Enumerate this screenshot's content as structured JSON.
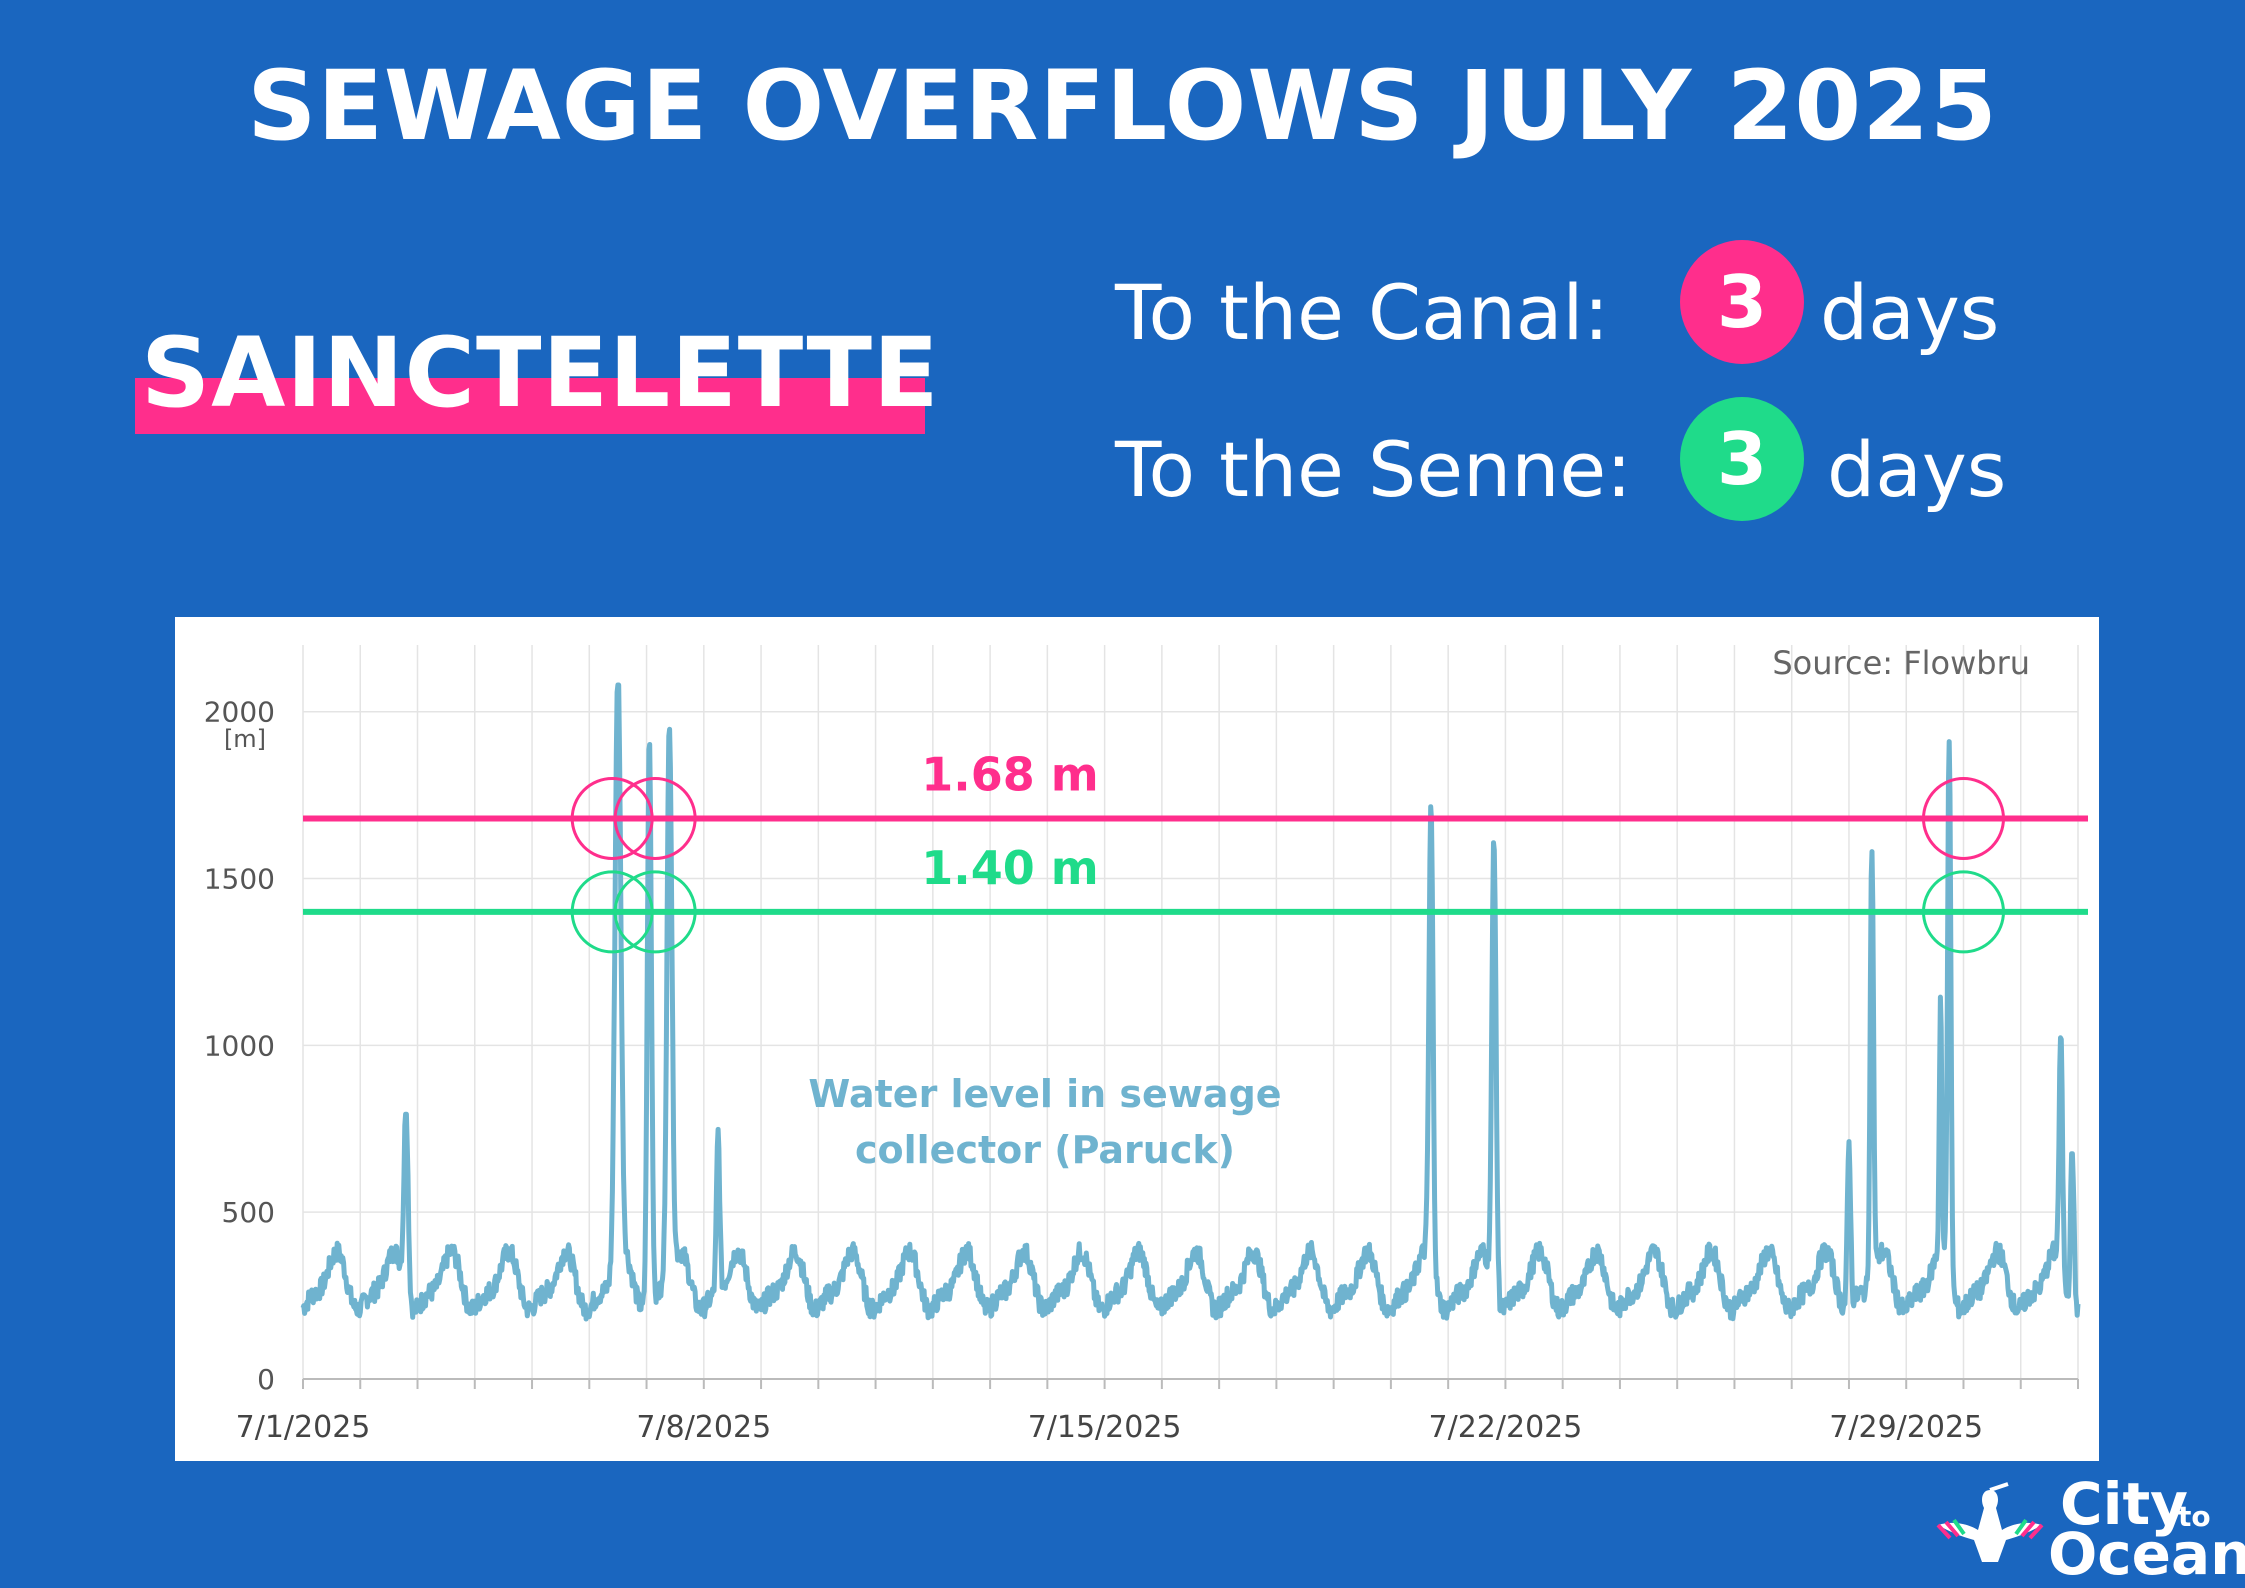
{
  "header": {
    "title": "SEWAGE OVERFLOWS JULY 2025"
  },
  "station": {
    "name": "SAINCTELETTE"
  },
  "stats": [
    {
      "label": "To the Canal:",
      "count": "3",
      "unit": "days",
      "color": "#ff2e8c"
    },
    {
      "label": "To the Senne:",
      "count": "3",
      "unit": "days",
      "color": "#1fdb8a"
    }
  ],
  "chart_data": {
    "type": "line",
    "title": "",
    "source": "Source: Flowbru",
    "ylabel": "[m]",
    "xlabel": "",
    "ylim": [
      0,
      2200
    ],
    "xlim": [
      0,
      31
    ],
    "grid": true,
    "yticks": [
      0,
      500,
      1000,
      1500,
      2000
    ],
    "xticks": [
      {
        "value": 0,
        "label": "7/1/2025"
      },
      {
        "value": 7,
        "label": "7/8/2025"
      },
      {
        "value": 14,
        "label": "7/15/2025"
      },
      {
        "value": 21,
        "label": "7/22/2025"
      },
      {
        "value": 28,
        "label": "7/29/2025"
      }
    ],
    "thresholds": [
      {
        "name": "canal",
        "value": 1680,
        "label": "1.68 m",
        "color": "#ff2e8c"
      },
      {
        "name": "senne",
        "value": 1400,
        "label": "1.40 m",
        "color": "#1fdb8a"
      }
    ],
    "exceedance_markers": [
      {
        "x": 5.4,
        "threshold": "canal"
      },
      {
        "x": 6.15,
        "threshold": "canal"
      },
      {
        "x": 29.0,
        "threshold": "canal"
      },
      {
        "x": 5.4,
        "threshold": "senne"
      },
      {
        "x": 6.15,
        "threshold": "senne"
      },
      {
        "x": 29.0,
        "threshold": "senne"
      }
    ],
    "series": [
      {
        "name": "Water level in sewage collector (Paruck)",
        "color": "#6fb3cf",
        "baseline": {
          "mean": 285,
          "amplitude": 75,
          "noise": 30
        },
        "spikes": [
          {
            "x": 1.8,
            "peak": 840,
            "width": 0.05
          },
          {
            "x": 5.5,
            "peak": 2080,
            "width": 0.07
          },
          {
            "x": 6.05,
            "peak": 1990,
            "width": 0.05
          },
          {
            "x": 6.4,
            "peak": 1960,
            "width": 0.06
          },
          {
            "x": 7.25,
            "peak": 760,
            "width": 0.04
          },
          {
            "x": 19.7,
            "peak": 1660,
            "width": 0.05
          },
          {
            "x": 20.8,
            "peak": 1650,
            "width": 0.05
          },
          {
            "x": 27.0,
            "peak": 780,
            "width": 0.04
          },
          {
            "x": 27.4,
            "peak": 1590,
            "width": 0.04
          },
          {
            "x": 28.6,
            "peak": 1050,
            "width": 0.03
          },
          {
            "x": 28.75,
            "peak": 1900,
            "width": 0.04
          },
          {
            "x": 30.7,
            "peak": 980,
            "width": 0.04
          },
          {
            "x": 30.9,
            "peak": 770,
            "width": 0.04
          }
        ]
      }
    ]
  },
  "logo": {
    "city": "City",
    "to": "to",
    "ocean": "Ocean"
  }
}
